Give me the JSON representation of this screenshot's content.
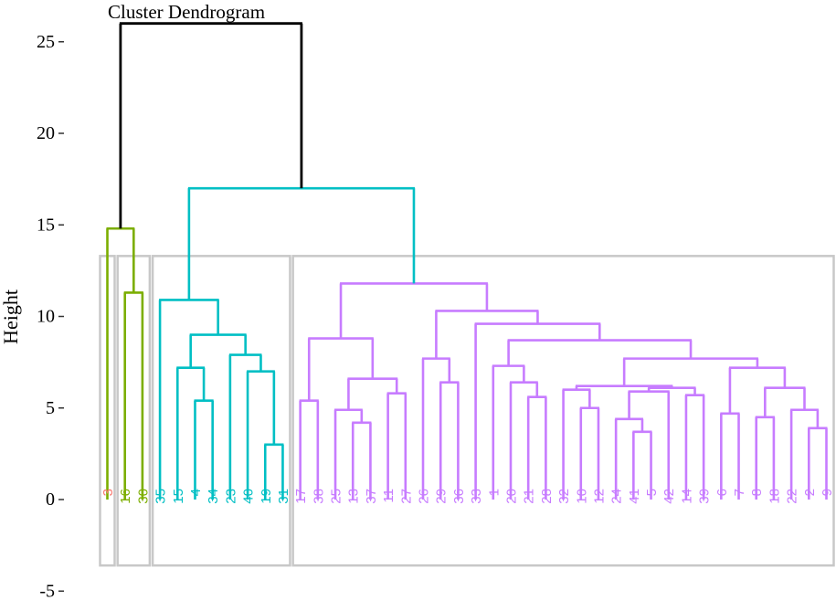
{
  "chart_data": {
    "type": "dendrogram",
    "title": "Cluster Dendrogram",
    "ylabel": "Height",
    "xlabel": "",
    "ylim": [
      -5,
      25
    ],
    "yticks": [
      -5,
      0,
      5,
      10,
      15,
      20,
      25
    ],
    "grid": false,
    "leaves": [
      "3",
      "16",
      "30",
      "35",
      "15",
      "4",
      "34",
      "23",
      "40",
      "19",
      "31",
      "17",
      "38",
      "25",
      "13",
      "37",
      "11",
      "27",
      "26",
      "29",
      "36",
      "33",
      "1",
      "20",
      "21",
      "28",
      "32",
      "10",
      "12",
      "24",
      "41",
      "5",
      "42",
      "14",
      "39",
      "6",
      "7",
      "8",
      "18",
      "22",
      "2",
      "9"
    ],
    "clusters": [
      {
        "id": 1,
        "color": "#F8766D",
        "leaves": [
          "3"
        ]
      },
      {
        "id": 2,
        "color": "#7CAE00",
        "leaves": [
          "16",
          "30"
        ]
      },
      {
        "id": 3,
        "color": "#00BFC4",
        "leaves": [
          "35",
          "15",
          "4",
          "34",
          "23",
          "40",
          "19",
          "31"
        ]
      },
      {
        "id": 4,
        "color": "#C77CFF",
        "leaves": [
          "17",
          "38",
          "25",
          "13",
          "37",
          "11",
          "27",
          "26",
          "29",
          "36",
          "33",
          "1",
          "20",
          "21",
          "28",
          "32",
          "10",
          "12",
          "24",
          "41",
          "5",
          "42",
          "14",
          "39",
          "6",
          "7",
          "8",
          "18",
          "22",
          "2",
          "9"
        ]
      }
    ],
    "merges": [
      {
        "height": 11.3,
        "members": [
          "16",
          "30"
        ],
        "color": "#7CAE00"
      },
      {
        "height": 14.8,
        "members": [
          "3",
          "16",
          "30"
        ],
        "color": "#7CAE00"
      },
      {
        "height": 7.2,
        "members": [
          "15",
          "4",
          "34"
        ],
        "color": "#00BFC4"
      },
      {
        "height": 5.4,
        "members": [
          "4",
          "34"
        ],
        "color": "#00BFC4"
      },
      {
        "height": 9.0,
        "members": [
          "15",
          "4",
          "34",
          "23",
          "40",
          "19",
          "31"
        ],
        "color": "#00BFC4"
      },
      {
        "height": 7.9,
        "members": [
          "23",
          "40",
          "19",
          "31"
        ],
        "color": "#00BFC4"
      },
      {
        "height": 7.0,
        "members": [
          "40",
          "19",
          "31"
        ],
        "color": "#00BFC4"
      },
      {
        "height": 3.0,
        "members": [
          "19",
          "31"
        ],
        "color": "#00BFC4"
      },
      {
        "height": 10.9,
        "members": [
          "35",
          "15",
          "4",
          "34",
          "23",
          "40",
          "19",
          "31"
        ],
        "color": "#00BFC4"
      },
      {
        "height": 17.0,
        "members": [
          "cluster 3",
          "cluster 4"
        ],
        "color": "#00BFC4"
      },
      {
        "height": 11.8,
        "members": [
          "17",
          "38",
          "25",
          "13",
          "37",
          "11",
          "27",
          "26",
          "29",
          "36",
          "33",
          "1",
          "20",
          "21",
          "28",
          "32",
          "10",
          "12",
          "24",
          "41",
          "5",
          "42",
          "14",
          "39",
          "6",
          "7",
          "8",
          "18",
          "22",
          "2",
          "9"
        ],
        "color": "#C77CFF"
      },
      {
        "height": 8.8,
        "members": [
          "17",
          "38",
          "25",
          "13",
          "37",
          "11",
          "27"
        ],
        "color": "#C77CFF"
      },
      {
        "height": 6.6,
        "members": [
          "38",
          "25",
          "13",
          "37",
          "11",
          "27"
        ],
        "color": "#C77CFF"
      },
      {
        "height": 10.3,
        "members": [
          "26",
          "29",
          "36",
          "33",
          "1",
          "20",
          "21",
          "28",
          "32",
          "10",
          "12",
          "24",
          "41",
          "5",
          "42",
          "14",
          "39",
          "6",
          "7",
          "8",
          "18",
          "22",
          "2",
          "9"
        ],
        "color": "#C77CFF"
      },
      {
        "height": 9.6,
        "members": [
          "1",
          "20",
          "21",
          "28",
          "32",
          "10",
          "12",
          "24",
          "41",
          "5",
          "42",
          "14",
          "39",
          "6",
          "7",
          "8",
          "18",
          "22",
          "2",
          "9"
        ],
        "color": "#C77CFF"
      },
      {
        "height": 8.7,
        "members": [
          "20",
          "21",
          "28",
          "32",
          "10",
          "12",
          "24",
          "41",
          "5",
          "42",
          "14",
          "39",
          "6",
          "7",
          "8",
          "18",
          "22",
          "2",
          "9"
        ],
        "color": "#C77CFF"
      },
      {
        "height": 7.7,
        "members": [
          "32",
          "10",
          "12",
          "24",
          "41",
          "5",
          "42",
          "14",
          "39",
          "6",
          "7",
          "8",
          "18",
          "22",
          "2",
          "9"
        ],
        "color": "#C77CFF"
      },
      {
        "height": 26.0,
        "members": [
          "all"
        ],
        "color": "#000000"
      }
    ]
  }
}
